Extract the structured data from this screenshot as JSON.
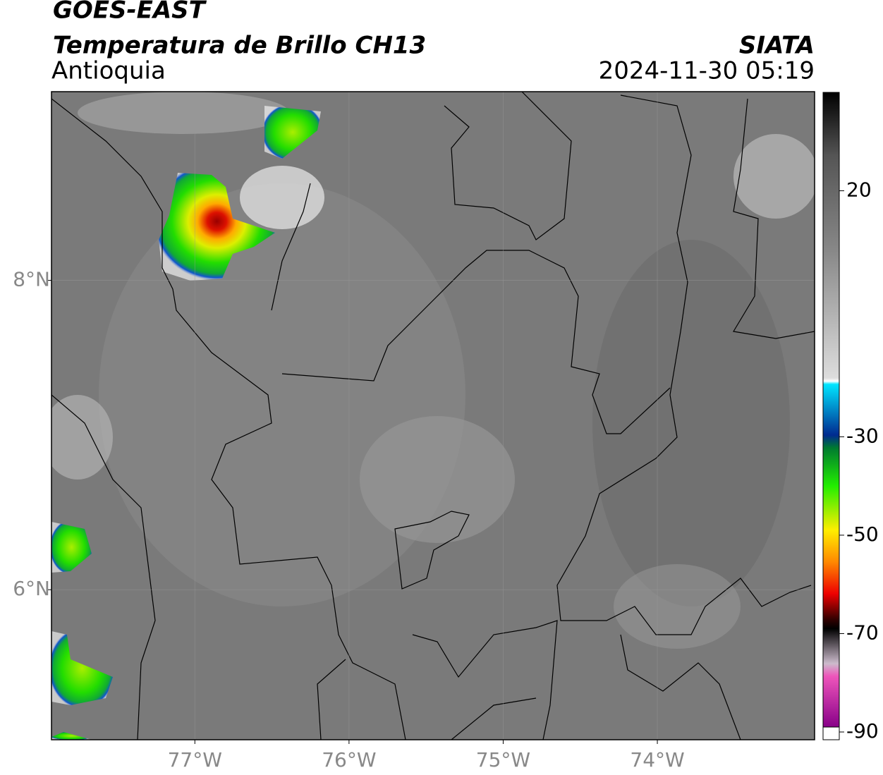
{
  "header": {
    "title": "GOES-EAST",
    "subtitle": "Temperatura de Brillo CH13",
    "region": "Antioquia",
    "source": "SIATA",
    "datetime": "2024-11-30 05:19"
  },
  "map": {
    "xlim": [
      -77.93,
      -72.98
    ],
    "ylim": [
      5.03,
      9.22
    ],
    "xticks": [
      {
        "value": -77,
        "label": "77°W"
      },
      {
        "value": -76,
        "label": "76°W"
      },
      {
        "value": -75,
        "label": "75°W"
      },
      {
        "value": -74,
        "label": "74°W"
      }
    ],
    "yticks": [
      {
        "value": 8,
        "label": "8°N"
      },
      {
        "value": 6,
        "label": "6°N"
      }
    ]
  },
  "colorbar": {
    "lim": [
      -90,
      40
    ],
    "ticks": [
      20,
      -30,
      -50,
      -70,
      -90
    ]
  }
}
